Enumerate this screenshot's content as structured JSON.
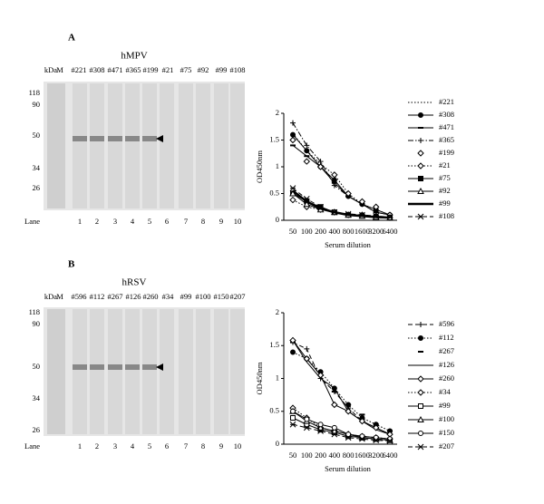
{
  "panels": [
    {
      "letter": "A",
      "blot_title": "hMPV",
      "blot_header": [
        "kDa",
        "M",
        "#221",
        "#308",
        "#471",
        "#365",
        "#199",
        "#21",
        "#75",
        "#92",
        "#99",
        "#108"
      ],
      "markers": [
        "118",
        "90",
        "50",
        "34",
        "26"
      ],
      "lane_label": "Lane",
      "lanes": [
        "1",
        "2",
        "3",
        "4",
        "5",
        "6",
        "7",
        "8",
        "9",
        "10"
      ]
    },
    {
      "letter": "B",
      "blot_title": "hRSV",
      "blot_header": [
        "kDa",
        "M",
        "#596",
        "#112",
        "#267",
        "#126",
        "#260",
        "#34",
        "#99",
        "#100",
        "#150",
        "#207"
      ],
      "markers": [
        "118",
        "90",
        "50",
        "34",
        "26"
      ],
      "lane_label": "Lane",
      "lanes": [
        "1",
        "2",
        "3",
        "4",
        "5",
        "6",
        "7",
        "8",
        "9",
        "10"
      ]
    }
  ],
  "chart_data": [
    {
      "type": "line",
      "ylabel": "OD450nm",
      "xlabel": "Serum dilution",
      "categories": [
        "50",
        "100",
        "200",
        "400",
        "800",
        "1600",
        "3200",
        "6400"
      ],
      "ylim": [
        0,
        2
      ],
      "yticks": [
        0,
        0.5,
        1,
        1.5,
        2
      ],
      "series": [
        {
          "name": "#221",
          "color": "#000",
          "dash": "dot",
          "marker": "none",
          "values": [
            1.62,
            1.3,
            1.05,
            0.85,
            0.5,
            0.3,
            0.2,
            0.1
          ]
        },
        {
          "name": "#308",
          "color": "#000",
          "dash": "solid",
          "marker": "circle-filled",
          "values": [
            1.6,
            1.3,
            1.0,
            0.75,
            0.45,
            0.3,
            0.2,
            0.1
          ]
        },
        {
          "name": "#471",
          "color": "#000",
          "dash": "solid",
          "marker": "dash",
          "values": [
            1.4,
            1.2,
            1.0,
            0.7,
            0.45,
            0.3,
            0.15,
            0.1
          ]
        },
        {
          "name": "#365",
          "color": "#000",
          "dash": "dashdot",
          "marker": "plus",
          "values": [
            1.82,
            1.4,
            1.1,
            0.65,
            0.45,
            0.3,
            0.15,
            0.1
          ]
        },
        {
          "name": "#199",
          "color": "#000",
          "dash": "none",
          "marker": "diamond-open",
          "values": [
            1.5,
            1.1,
            1.0,
            0.85,
            0.5,
            0.35,
            0.25,
            0.1
          ]
        },
        {
          "name": "#21",
          "color": "#000",
          "dash": "dot",
          "marker": "diamond-open",
          "values": [
            0.38,
            0.25,
            0.2,
            0.15,
            0.1,
            0.1,
            0.08,
            0.05
          ]
        },
        {
          "name": "#75",
          "color": "#000",
          "dash": "solid",
          "marker": "square-filled",
          "values": [
            0.5,
            0.35,
            0.25,
            0.15,
            0.1,
            0.08,
            0.06,
            0.05
          ]
        },
        {
          "name": "#92",
          "color": "#000",
          "dash": "solid",
          "marker": "triangle-open",
          "values": [
            0.5,
            0.3,
            0.2,
            0.15,
            0.1,
            0.08,
            0.06,
            0.05
          ]
        },
        {
          "name": "#99",
          "color": "#000",
          "dash": "thick",
          "marker": "none",
          "values": [
            0.55,
            0.35,
            0.22,
            0.15,
            0.1,
            0.08,
            0.06,
            0.05
          ]
        },
        {
          "name": "#108",
          "color": "#000",
          "dash": "dash",
          "marker": "star",
          "values": [
            0.6,
            0.4,
            0.25,
            0.15,
            0.12,
            0.1,
            0.08,
            0.06
          ]
        }
      ]
    },
    {
      "type": "line",
      "ylabel": "OD450nm",
      "xlabel": "Serum dilution",
      "categories": [
        "50",
        "100",
        "200",
        "400",
        "800",
        "1600",
        "3200",
        "6400"
      ],
      "ylim": [
        0,
        2
      ],
      "yticks": [
        0,
        0.5,
        1,
        1.5,
        2
      ],
      "series": [
        {
          "name": "#596",
          "color": "#000",
          "dash": "dash",
          "marker": "plus",
          "values": [
            1.55,
            1.45,
            1.0,
            0.8,
            0.55,
            0.35,
            0.25,
            0.15
          ]
        },
        {
          "name": "#112",
          "color": "#000",
          "dash": "dot",
          "marker": "circle-filled",
          "values": [
            1.4,
            1.3,
            1.1,
            0.85,
            0.6,
            0.4,
            0.3,
            0.2
          ]
        },
        {
          "name": "#267",
          "color": "#000",
          "dash": "none",
          "marker": "dash",
          "values": [
            1.55,
            1.3,
            1.05,
            0.8,
            0.6,
            0.45,
            0.3,
            0.2
          ]
        },
        {
          "name": "#126",
          "color": "#000",
          "dash": "solid",
          "marker": "none",
          "values": [
            1.58,
            1.25,
            1.0,
            0.85,
            0.5,
            0.35,
            0.22,
            0.15
          ]
        },
        {
          "name": "#260",
          "color": "#000",
          "dash": "solid",
          "marker": "diamond-open",
          "values": [
            1.58,
            1.3,
            1.05,
            0.6,
            0.5,
            0.35,
            0.25,
            0.15
          ]
        },
        {
          "name": "#34",
          "color": "#000",
          "dash": "dot",
          "marker": "diamond-open",
          "values": [
            0.55,
            0.4,
            0.25,
            0.2,
            0.15,
            0.12,
            0.1,
            0.08
          ]
        },
        {
          "name": "#99",
          "color": "#000",
          "dash": "solid",
          "marker": "square-open",
          "values": [
            0.4,
            0.3,
            0.22,
            0.18,
            0.12,
            0.1,
            0.08,
            0.06
          ]
        },
        {
          "name": "#100",
          "color": "#000",
          "dash": "solid",
          "marker": "triangle-open",
          "values": [
            0.5,
            0.35,
            0.25,
            0.2,
            0.15,
            0.1,
            0.08,
            0.06
          ]
        },
        {
          "name": "#150",
          "color": "#000",
          "dash": "solid",
          "marker": "circle-open",
          "values": [
            0.5,
            0.38,
            0.3,
            0.25,
            0.15,
            0.12,
            0.1,
            0.08
          ]
        },
        {
          "name": "#207",
          "color": "#000",
          "dash": "dash",
          "marker": "star",
          "values": [
            0.3,
            0.25,
            0.2,
            0.15,
            0.1,
            0.08,
            0.06,
            0.05
          ]
        }
      ]
    }
  ]
}
